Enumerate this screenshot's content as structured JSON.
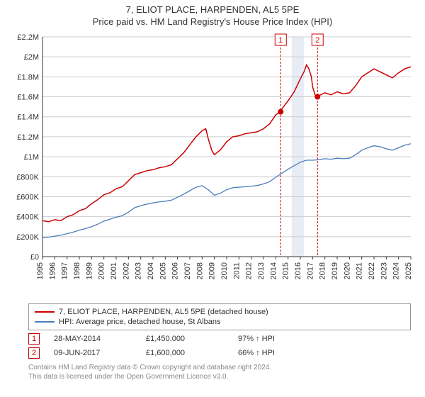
{
  "title": "7, ELIOT PLACE, HARPENDEN, AL5 5PE",
  "subtitle": "Price paid vs. HM Land Registry's House Price Index (HPI)",
  "chart": {
    "type": "line",
    "background_color": "#ffffff",
    "grid_color": "#cccccc",
    "axis_color": "#333333",
    "label_fontsize": 11,
    "x_years": [
      1995,
      1996,
      1997,
      1998,
      1999,
      2000,
      2001,
      2002,
      2003,
      2004,
      2005,
      2006,
      2007,
      2008,
      2009,
      2010,
      2011,
      2012,
      2013,
      2014,
      2015,
      2016,
      2017,
      2018,
      2019,
      2020,
      2021,
      2022,
      2023,
      2024,
      2025
    ],
    "y_ticks": [
      0,
      200000,
      400000,
      600000,
      800000,
      1000000,
      1200000,
      1400000,
      1600000,
      1800000,
      2000000,
      2200000
    ],
    "y_tick_labels": [
      "£0",
      "£200K",
      "£400K",
      "£600K",
      "£800K",
      "£1M",
      "£1.2M",
      "£1.4M",
      "£1.6M",
      "£1.8M",
      "£2M",
      "£2.2M"
    ],
    "ylim": [
      0,
      2200000
    ],
    "series": [
      {
        "name": "price_paid",
        "color": "#cc0000",
        "line_width": 1.5,
        "data": [
          [
            1995,
            360000
          ],
          [
            1995.5,
            350000
          ],
          [
            1996,
            370000
          ],
          [
            1996.5,
            360000
          ],
          [
            1997,
            400000
          ],
          [
            1997.5,
            420000
          ],
          [
            1998,
            460000
          ],
          [
            1998.5,
            480000
          ],
          [
            1999,
            530000
          ],
          [
            1999.5,
            570000
          ],
          [
            2000,
            620000
          ],
          [
            2000.5,
            640000
          ],
          [
            2001,
            680000
          ],
          [
            2001.5,
            700000
          ],
          [
            2002,
            760000
          ],
          [
            2002.5,
            820000
          ],
          [
            2003,
            840000
          ],
          [
            2003.5,
            860000
          ],
          [
            2004,
            870000
          ],
          [
            2004.5,
            890000
          ],
          [
            2005,
            900000
          ],
          [
            2005.5,
            920000
          ],
          [
            2006,
            980000
          ],
          [
            2006.5,
            1040000
          ],
          [
            2007,
            1120000
          ],
          [
            2007.5,
            1200000
          ],
          [
            2008,
            1260000
          ],
          [
            2008.3,
            1280000
          ],
          [
            2008.5,
            1180000
          ],
          [
            2008.8,
            1060000
          ],
          [
            2009,
            1020000
          ],
          [
            2009.5,
            1070000
          ],
          [
            2010,
            1150000
          ],
          [
            2010.5,
            1200000
          ],
          [
            2011,
            1210000
          ],
          [
            2011.5,
            1230000
          ],
          [
            2012,
            1240000
          ],
          [
            2012.5,
            1250000
          ],
          [
            2013,
            1280000
          ],
          [
            2013.5,
            1330000
          ],
          [
            2014,
            1420000
          ],
          [
            2014.4,
            1450000
          ],
          [
            2014.5,
            1480000
          ],
          [
            2015,
            1560000
          ],
          [
            2015.5,
            1650000
          ],
          [
            2016,
            1780000
          ],
          [
            2016.3,
            1850000
          ],
          [
            2016.5,
            1920000
          ],
          [
            2016.7,
            1880000
          ],
          [
            2016.9,
            1800000
          ],
          [
            2017,
            1700000
          ],
          [
            2017.2,
            1620000
          ],
          [
            2017.4,
            1600000
          ],
          [
            2017.5,
            1610000
          ],
          [
            2018,
            1640000
          ],
          [
            2018.5,
            1620000
          ],
          [
            2019,
            1650000
          ],
          [
            2019.5,
            1630000
          ],
          [
            2020,
            1640000
          ],
          [
            2020.5,
            1710000
          ],
          [
            2021,
            1800000
          ],
          [
            2021.5,
            1840000
          ],
          [
            2022,
            1880000
          ],
          [
            2022.5,
            1850000
          ],
          [
            2023,
            1820000
          ],
          [
            2023.5,
            1790000
          ],
          [
            2024,
            1840000
          ],
          [
            2024.5,
            1880000
          ],
          [
            2025,
            1900000
          ]
        ]
      },
      {
        "name": "hpi",
        "color": "#4a7ebb",
        "line_width": 1.3,
        "data": [
          [
            1995,
            190000
          ],
          [
            1995.5,
            195000
          ],
          [
            1996,
            205000
          ],
          [
            1996.5,
            215000
          ],
          [
            1997,
            230000
          ],
          [
            1997.5,
            245000
          ],
          [
            1998,
            265000
          ],
          [
            1998.5,
            280000
          ],
          [
            1999,
            300000
          ],
          [
            1999.5,
            325000
          ],
          [
            2000,
            355000
          ],
          [
            2000.5,
            375000
          ],
          [
            2001,
            395000
          ],
          [
            2001.5,
            410000
          ],
          [
            2002,
            445000
          ],
          [
            2002.5,
            490000
          ],
          [
            2003,
            510000
          ],
          [
            2003.5,
            525000
          ],
          [
            2004,
            538000
          ],
          [
            2004.5,
            548000
          ],
          [
            2005,
            555000
          ],
          [
            2005.5,
            565000
          ],
          [
            2006,
            595000
          ],
          [
            2006.5,
            625000
          ],
          [
            2007,
            660000
          ],
          [
            2007.5,
            695000
          ],
          [
            2008,
            710000
          ],
          [
            2008.5,
            670000
          ],
          [
            2009,
            615000
          ],
          [
            2009.5,
            635000
          ],
          [
            2010,
            670000
          ],
          [
            2010.5,
            690000
          ],
          [
            2011,
            695000
          ],
          [
            2011.5,
            700000
          ],
          [
            2012,
            705000
          ],
          [
            2012.5,
            712000
          ],
          [
            2013,
            728000
          ],
          [
            2013.5,
            750000
          ],
          [
            2014,
            795000
          ],
          [
            2014.5,
            835000
          ],
          [
            2015,
            875000
          ],
          [
            2015.5,
            910000
          ],
          [
            2016,
            945000
          ],
          [
            2016.5,
            965000
          ],
          [
            2017,
            965000
          ],
          [
            2017.5,
            970000
          ],
          [
            2018,
            980000
          ],
          [
            2018.5,
            975000
          ],
          [
            2019,
            985000
          ],
          [
            2019.5,
            980000
          ],
          [
            2020,
            985000
          ],
          [
            2020.5,
            1020000
          ],
          [
            2021,
            1065000
          ],
          [
            2021.5,
            1090000
          ],
          [
            2022,
            1110000
          ],
          [
            2022.5,
            1100000
          ],
          [
            2023,
            1080000
          ],
          [
            2023.5,
            1065000
          ],
          [
            2024,
            1090000
          ],
          [
            2024.5,
            1115000
          ],
          [
            2025,
            1130000
          ]
        ]
      }
    ],
    "markers": [
      {
        "id": "1",
        "year": 2014.4,
        "color": "#cc0000",
        "dot_y": 1450000
      },
      {
        "id": "2",
        "year": 2017.4,
        "color": "#cc0000",
        "dot_y": 1600000
      }
    ],
    "shaded_band": {
      "from_year": 2015.3,
      "to_year": 2016.3,
      "color": "#e8ecf5"
    }
  },
  "legend": {
    "items": [
      {
        "color": "#cc0000",
        "label": "7, ELIOT PLACE, HARPENDEN, AL5 5PE (detached house)"
      },
      {
        "color": "#4a7ebb",
        "label": "HPI: Average price, detached house, St Albans"
      }
    ]
  },
  "sales": [
    {
      "marker": "1",
      "marker_color": "#cc0000",
      "date": "28-MAY-2014",
      "price": "£1,450,000",
      "pct": "97% ↑ HPI"
    },
    {
      "marker": "2",
      "marker_color": "#cc0000",
      "date": "09-JUN-2017",
      "price": "£1,600,000",
      "pct": "66% ↑ HPI"
    }
  ],
  "footer_line1": "Contains HM Land Registry data © Crown copyright and database right 2024.",
  "footer_line2": "This data is licensed under the Open Government Licence v3.0."
}
